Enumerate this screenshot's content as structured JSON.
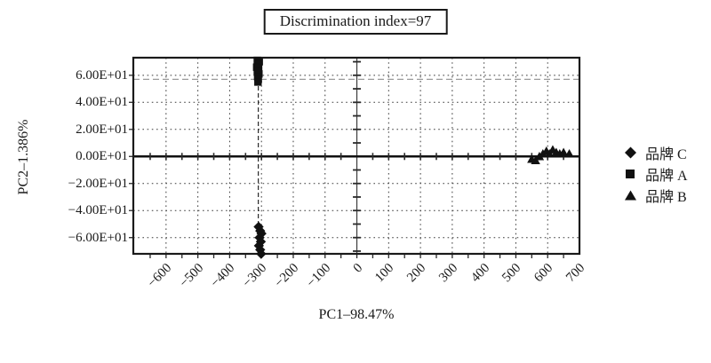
{
  "figure_title": "Discrimination index=97",
  "chart_data": {
    "type": "scatter",
    "title": "Discrimination index=97",
    "xlabel": "PC1–98.47%",
    "ylabel": "PC2–1.386%",
    "xlim": [
      -703,
      700
    ],
    "ylim": [
      -72,
      73
    ],
    "grid": "dotted",
    "legend_position": "right",
    "x_ticks": {
      "values": [
        -600,
        -500,
        -400,
        -300,
        -200,
        -100,
        0,
        100,
        200,
        300,
        400,
        500,
        600,
        700
      ],
      "labels": [
        "−600",
        "−500",
        "−400",
        "−300",
        "−200",
        "−100",
        "0",
        "100",
        "200",
        "300",
        "400",
        "500",
        "600",
        "700"
      ]
    },
    "y_ticks": {
      "values": [
        60,
        40,
        20,
        0,
        -20,
        -40,
        -60
      ],
      "labels": [
        "6.00E+01",
        "4.00E+01",
        "2.00E+01",
        "0.00E+01",
        "−2.00E+01",
        "−4.00E+01",
        "−6.00E+01"
      ]
    },
    "gridline_step": {
      "x": 100,
      "y": 20
    },
    "minor_ticks": {
      "on_x_axis_step": 50,
      "on_y_axis_step": 10,
      "below_plot_step": 50
    },
    "axes_cross_at": {
      "x": 0,
      "y": 0
    },
    "reference_lines": [
      {
        "orientation": "vertical",
        "value": -310,
        "color": "#2a2a2a",
        "dash": "5,3"
      },
      {
        "orientation": "horizontal",
        "value": 57,
        "color": "#9b9b9b",
        "dash": "7,4"
      }
    ],
    "series": [
      {
        "name": "品牌 C",
        "marker": "diamond",
        "color": "#111111",
        "points": [
          [
            -309,
            -52
          ],
          [
            -304,
            -55
          ],
          [
            -300,
            -57
          ],
          [
            -306,
            -60
          ],
          [
            -302,
            -63
          ],
          [
            -308,
            -66
          ],
          [
            -304,
            -69
          ],
          [
            -301,
            -72
          ]
        ]
      },
      {
        "name": "品牌 A",
        "marker": "square",
        "color": "#111111",
        "points": [
          [
            -313,
            71
          ],
          [
            -307,
            70
          ],
          [
            -311,
            68
          ],
          [
            -315,
            66
          ],
          [
            -309,
            65
          ],
          [
            -313,
            63
          ],
          [
            -308,
            61
          ],
          [
            -312,
            59
          ],
          [
            -310,
            57
          ],
          [
            -311,
            55
          ]
        ]
      },
      {
        "name": "品牌 B",
        "marker": "triangle",
        "color": "#111111",
        "points": [
          [
            550,
            -2
          ],
          [
            562,
            -3
          ],
          [
            574,
            0
          ],
          [
            585,
            2
          ],
          [
            596,
            4
          ],
          [
            606,
            2
          ],
          [
            616,
            5
          ],
          [
            627,
            3
          ],
          [
            638,
            2
          ],
          [
            650,
            3
          ],
          [
            668,
            2
          ]
        ]
      }
    ],
    "colors": {
      "border": "#1a1a1a",
      "gridline": "#3a3a3a",
      "axis": "#111111",
      "background": "#ffffff"
    }
  }
}
